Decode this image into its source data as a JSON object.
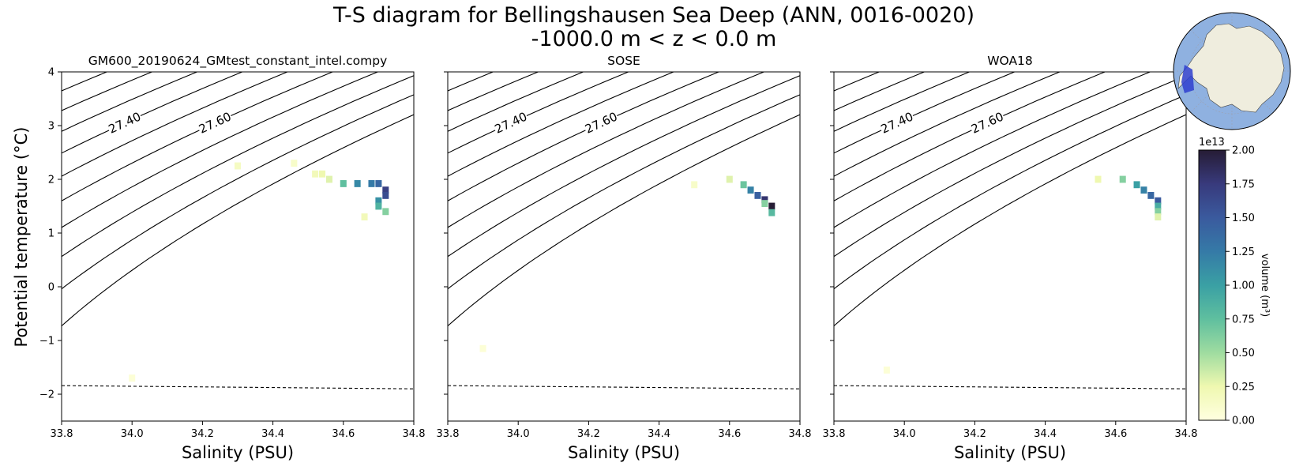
{
  "figure": {
    "title_line1": "T-S diagram for Bellingshausen Sea Deep (ANN, 0016-0020)",
    "title_line2": "-1000.0 m < z < 0.0 m"
  },
  "chart_data": [
    {
      "type": "heatmap",
      "title": "GM600_20190624_GMtest_constant_intel.compy",
      "xlabel": "Salinity (PSU)",
      "ylabel": "Potential temperature (°C)",
      "xlim": [
        33.8,
        34.8
      ],
      "ylim": [
        -2.5,
        4
      ],
      "xticks": [
        33.8,
        34.0,
        34.2,
        34.4,
        34.6,
        34.8
      ],
      "yticks": [
        -2,
        -1,
        0,
        1,
        2,
        3,
        4
      ],
      "freezing_line": [
        [
          33.8,
          -1.84
        ],
        [
          34.8,
          -1.9
        ]
      ],
      "density_contours": [
        27.0,
        27.1,
        27.2,
        27.3,
        27.4,
        27.5,
        27.6,
        27.7,
        27.8,
        27.9,
        28.0
      ],
      "volume_cells": [
        [
          34.0,
          -1.7,
          0.05
        ],
        [
          34.3,
          2.25,
          0.15
        ],
        [
          34.46,
          2.3,
          0.12
        ],
        [
          34.52,
          2.1,
          0.2
        ],
        [
          34.54,
          2.1,
          0.25
        ],
        [
          34.56,
          2.0,
          0.3
        ],
        [
          34.6,
          1.92,
          0.75
        ],
        [
          34.64,
          1.92,
          1.15
        ],
        [
          34.68,
          1.92,
          1.25
        ],
        [
          34.7,
          1.92,
          1.4
        ],
        [
          34.72,
          1.8,
          1.7
        ],
        [
          34.72,
          1.7,
          1.6
        ],
        [
          34.7,
          1.6,
          1.1
        ],
        [
          34.7,
          1.5,
          0.85
        ],
        [
          34.72,
          1.4,
          0.6
        ],
        [
          34.66,
          1.3,
          0.2
        ]
      ]
    },
    {
      "type": "heatmap",
      "title": "SOSE",
      "xlabel": "Salinity (PSU)",
      "ylabel": "",
      "xlim": [
        33.8,
        34.8
      ],
      "ylim": [
        -2.5,
        4
      ],
      "xticks": [
        33.8,
        34.0,
        34.2,
        34.4,
        34.6,
        34.8
      ],
      "yticks": [
        -2,
        -1,
        0,
        1,
        2,
        3,
        4
      ],
      "freezing_line": [
        [
          33.8,
          -1.84
        ],
        [
          34.8,
          -1.9
        ]
      ],
      "density_contours": [
        27.0,
        27.1,
        27.2,
        27.3,
        27.4,
        27.5,
        27.6,
        27.7,
        27.8,
        27.9,
        28.0
      ],
      "volume_cells": [
        [
          33.9,
          -1.15,
          0.05
        ],
        [
          34.5,
          1.9,
          0.12
        ],
        [
          34.6,
          2.0,
          0.3
        ],
        [
          34.64,
          1.9,
          0.7
        ],
        [
          34.66,
          1.8,
          1.2
        ],
        [
          34.68,
          1.7,
          1.45
        ],
        [
          34.7,
          1.62,
          1.8
        ],
        [
          34.72,
          1.5,
          2.0
        ],
        [
          34.72,
          1.38,
          0.8
        ],
        [
          34.7,
          1.55,
          0.6
        ]
      ]
    },
    {
      "type": "heatmap",
      "title": "WOA18",
      "xlabel": "Salinity (PSU)",
      "ylabel": "",
      "xlim": [
        33.8,
        34.8
      ],
      "ylim": [
        -2.5,
        4
      ],
      "xticks": [
        33.8,
        34.0,
        34.2,
        34.4,
        34.6,
        34.8
      ],
      "yticks": [
        -2,
        -1,
        0,
        1,
        2,
        3,
        4
      ],
      "freezing_line": [
        [
          33.8,
          -1.84
        ],
        [
          34.8,
          -1.9
        ]
      ],
      "density_contours": [
        27.0,
        27.1,
        27.2,
        27.3,
        27.4,
        27.5,
        27.6,
        27.7,
        27.8,
        27.9,
        28.0
      ],
      "volume_cells": [
        [
          33.95,
          -1.55,
          0.05
        ],
        [
          34.55,
          2.0,
          0.25
        ],
        [
          34.62,
          2.0,
          0.6
        ],
        [
          34.66,
          1.9,
          1.0
        ],
        [
          34.68,
          1.8,
          1.2
        ],
        [
          34.7,
          1.7,
          1.4
        ],
        [
          34.72,
          1.6,
          1.5
        ],
        [
          34.72,
          1.5,
          0.9
        ],
        [
          34.72,
          1.4,
          0.6
        ],
        [
          34.72,
          1.3,
          0.3
        ]
      ]
    }
  ],
  "colorbar": {
    "label": "volume (m³)",
    "exponent_label": "1e13",
    "ticks": [
      "0.00",
      "0.25",
      "0.50",
      "0.75",
      "1.00",
      "1.25",
      "1.50",
      "1.75",
      "2.00"
    ],
    "vmin": 0,
    "vmax": 2.0,
    "colors": [
      "#ffffe0",
      "#eff8b0",
      "#9fdca0",
      "#5fbf9f",
      "#3aa0a4",
      "#357aa7",
      "#3a5a9e",
      "#383a7c",
      "#261c35"
    ]
  },
  "inset_map": {
    "ocean_color": "#8fb1e0",
    "land_color": "#efedde",
    "region_color": "#2f3fcf"
  }
}
